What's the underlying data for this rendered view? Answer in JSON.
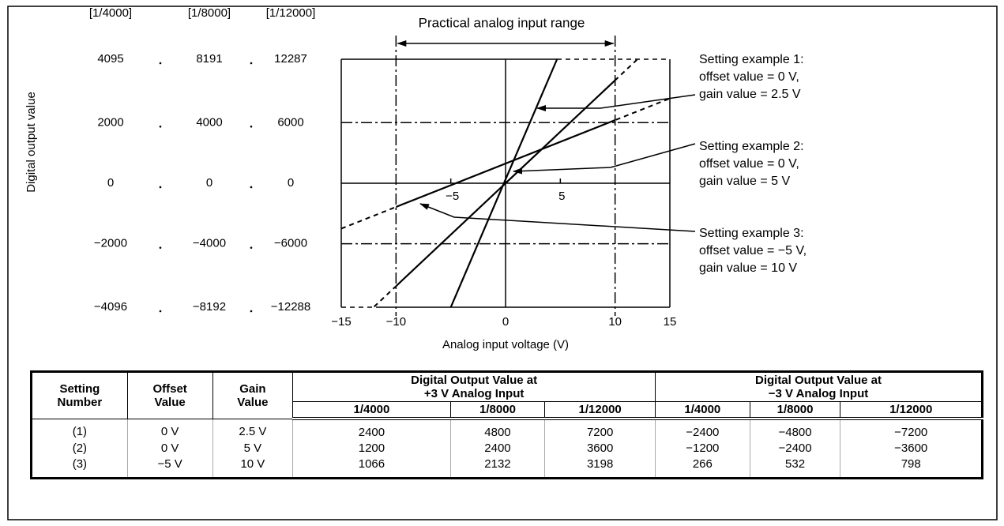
{
  "chart_data": {
    "type": "line",
    "ylabel": "Digital output value",
    "xlabel": "Analog input voltage (V)",
    "range_label": "Practical analog input range",
    "range": [
      -10,
      10
    ],
    "xlim": [
      -15,
      15
    ],
    "xticks": [
      {
        "value": -15,
        "label": "−15"
      },
      {
        "value": -10,
        "label": "−10"
      },
      0,
      10,
      15
    ],
    "inner_xticks": [
      {
        "value": -5,
        "label": "−5"
      },
      5
    ],
    "ylim": [
      -4096,
      4095
    ],
    "yticks": [
      4095,
      2000,
      0,
      {
        "value": -2000,
        "label": "−2000"
      },
      {
        "value": -4096,
        "label": "−4096"
      }
    ],
    "ytick_headers": [
      "[1/4000]",
      "[1/8000]",
      "[1/12000]"
    ],
    "ytick_columns": [
      [
        "8191",
        "4000",
        "0",
        "−4000",
        "−8192"
      ],
      [
        "12287",
        "6000",
        "0",
        "−6000",
        "−12288"
      ]
    ],
    "reference_y": [
      2000,
      -2000
    ],
    "color": "#000000",
    "series": [
      {
        "label": [
          "Setting example 1:",
          "offset value = 0 V,",
          "gain value = 2.5 V"
        ],
        "x": [
          -5,
          4.7
        ],
        "values": [
          -4096,
          4095
        ]
      },
      {
        "label": [
          "Setting example 2:",
          "offset value = 0 V,",
          "gain value = 5 V"
        ],
        "x": [
          -12,
          12
        ],
        "values": [
          -4080,
          4080
        ]
      },
      {
        "label": [
          "Setting example 3:",
          "offset value = −5 V,",
          "gain value = 10 V"
        ],
        "x": [
          -15,
          15
        ],
        "values": [
          -1500,
          2800
        ]
      }
    ]
  },
  "table": {
    "columns": [
      [
        "Setting",
        "Number"
      ],
      [
        "Offset",
        "Value"
      ],
      [
        "Gain",
        "Value"
      ]
    ],
    "groups": [
      [
        "Digital Output Value at",
        "+3 V Analog Input"
      ],
      [
        "Digital Output Value at",
        "−3 V Analog Input"
      ]
    ],
    "subcolumns": [
      "1/4000",
      "1/8000",
      "1/12000",
      "1/4000",
      "1/8000",
      "1/12000"
    ],
    "rows": [
      [
        "(1)",
        "0 V",
        "2.5 V",
        "2400",
        "4800",
        "7200",
        "−2400",
        "−4800",
        "−7200"
      ],
      [
        "(2)",
        "0 V",
        "5 V",
        "1200",
        "2400",
        "3600",
        "−1200",
        "−2400",
        "−3600"
      ],
      [
        "(3)",
        "−5 V",
        "10 V",
        "1066",
        "2132",
        "3198",
        "266",
        "532",
        "798"
      ]
    ]
  }
}
